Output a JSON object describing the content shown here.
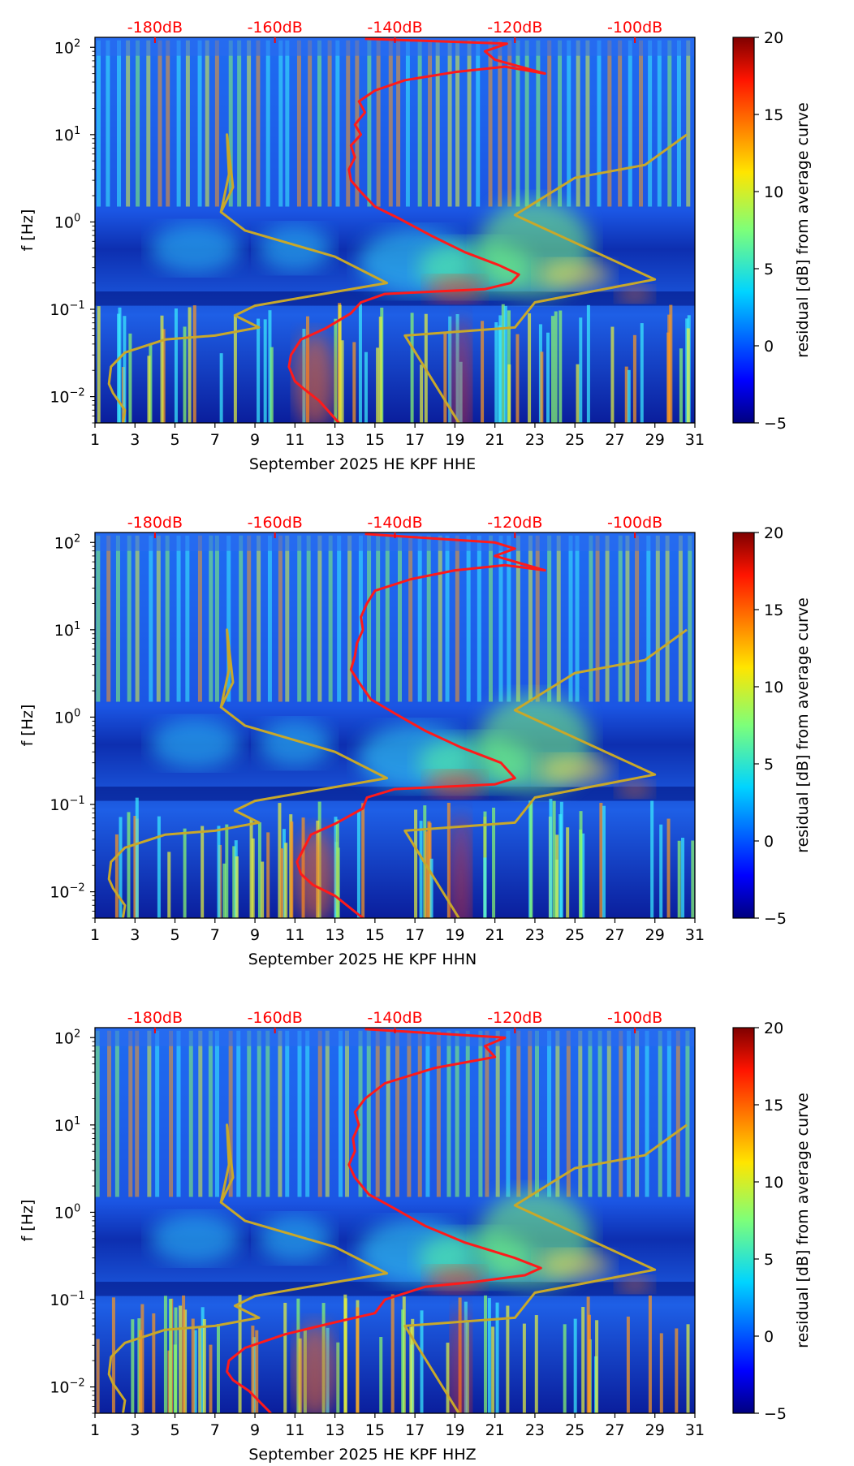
{
  "chart_data": [
    {
      "type": "heatmap",
      "xlabel": "September 2025 HE KPF  HHE",
      "ylabel": "f [Hz]",
      "x_ticks": [
        1,
        3,
        5,
        7,
        9,
        11,
        13,
        15,
        17,
        19,
        21,
        23,
        25,
        27,
        29,
        31
      ],
      "xlim": [
        1,
        31
      ],
      "y_scale": "log",
      "ylim": [
        0.005,
        130
      ],
      "y_ticks": [
        {
          "value": 0.01,
          "base": "10",
          "exp": "−2"
        },
        {
          "value": 0.1,
          "base": "10",
          "exp": "−1"
        },
        {
          "value": 1,
          "base": "10",
          "exp": "0"
        },
        {
          "value": 10,
          "base": "10",
          "exp": "1"
        },
        {
          "value": 100,
          "base": "10",
          "exp": "2"
        }
      ],
      "top_axis": {
        "labels": [
          "-180dB",
          "-160dB",
          "-140dB",
          "-120dB",
          "-100dB"
        ],
        "positions": [
          4,
          10,
          16,
          22,
          28
        ]
      },
      "colorbar": {
        "label": "residual [dB] from average curve",
        "range": [
          -5,
          20
        ],
        "ticks": [
          -5,
          0,
          5,
          10,
          15,
          20
        ]
      },
      "series": [
        {
          "color": "#ff1a1a",
          "points": [
            [
              13.2,
              0.005
            ],
            [
              12.2,
              0.009
            ],
            [
              11.5,
              0.012
            ],
            [
              11.0,
              0.015
            ],
            [
              10.7,
              0.022
            ],
            [
              10.8,
              0.03
            ],
            [
              11.3,
              0.045
            ],
            [
              12.5,
              0.06
            ],
            [
              13.8,
              0.09
            ],
            [
              14.3,
              0.12
            ],
            [
              15.5,
              0.15
            ],
            [
              18.0,
              0.16
            ],
            [
              20.5,
              0.17
            ],
            [
              21.8,
              0.2
            ],
            [
              22.2,
              0.25
            ],
            [
              21.2,
              0.32
            ],
            [
              19.5,
              0.45
            ],
            [
              17.8,
              0.7
            ],
            [
              16.2,
              1.1
            ],
            [
              15.0,
              1.5
            ],
            [
              14.3,
              2.2
            ],
            [
              13.8,
              3.0
            ],
            [
              13.7,
              4.0
            ],
            [
              14.0,
              5.5
            ],
            [
              13.8,
              7.5
            ],
            [
              14.3,
              10
            ],
            [
              14.0,
              13
            ],
            [
              14.5,
              18
            ],
            [
              14.2,
              24
            ],
            [
              15.0,
              32
            ],
            [
              16.5,
              42
            ],
            [
              19.0,
              52
            ],
            [
              21.5,
              60
            ],
            [
              23.5,
              50
            ],
            [
              21.0,
              72
            ],
            [
              20.5,
              90
            ],
            [
              21.6,
              110
            ],
            [
              14.5,
              125
            ]
          ]
        },
        {
          "color": "#c8a82a",
          "points": [
            [
              2.4,
              0.005
            ],
            [
              2.5,
              0.007
            ],
            [
              1.9,
              0.011
            ],
            [
              1.7,
              0.014
            ],
            [
              1.8,
              0.022
            ],
            [
              2.5,
              0.032
            ],
            [
              4.5,
              0.045
            ],
            [
              7.0,
              0.05
            ],
            [
              9.2,
              0.062
            ],
            [
              8.0,
              0.085
            ],
            [
              9.0,
              0.11
            ],
            [
              15.6,
              0.2
            ],
            [
              13.0,
              0.4
            ],
            [
              8.5,
              0.8
            ],
            [
              7.3,
              1.3
            ],
            [
              7.9,
              2.5
            ],
            [
              7.6,
              10
            ],
            [
              7.7,
              3.5
            ],
            [
              7.3,
              1.3
            ]
          ]
        },
        {
          "color": "#c8a82a",
          "points": [
            [
              19.2,
              0.005
            ],
            [
              16.5,
              0.05
            ],
            [
              22.0,
              0.062
            ],
            [
              23.0,
              0.12
            ],
            [
              29.0,
              0.22
            ],
            [
              22.0,
              1.2
            ],
            [
              25.0,
              3.2
            ],
            [
              28.5,
              4.5
            ],
            [
              30.6,
              10
            ]
          ]
        }
      ]
    },
    {
      "type": "heatmap",
      "xlabel": "September 2025 HE KPF  HHN",
      "ylabel": "f [Hz]",
      "x_ticks": [
        1,
        3,
        5,
        7,
        9,
        11,
        13,
        15,
        17,
        19,
        21,
        23,
        25,
        27,
        29,
        31
      ],
      "xlim": [
        1,
        31
      ],
      "y_scale": "log",
      "ylim": [
        0.005,
        130
      ],
      "y_ticks": [
        {
          "value": 0.01,
          "base": "10",
          "exp": "−2"
        },
        {
          "value": 0.1,
          "base": "10",
          "exp": "−1"
        },
        {
          "value": 1,
          "base": "10",
          "exp": "0"
        },
        {
          "value": 10,
          "base": "10",
          "exp": "1"
        },
        {
          "value": 100,
          "base": "10",
          "exp": "2"
        }
      ],
      "top_axis": {
        "labels": [
          "-180dB",
          "-160dB",
          "-140dB",
          "-120dB",
          "-100dB"
        ],
        "positions": [
          4,
          10,
          16,
          22,
          28
        ]
      },
      "colorbar": {
        "label": "residual [dB] from average curve",
        "range": [
          -5,
          20
        ],
        "ticks": [
          -5,
          0,
          5,
          10,
          15,
          20
        ]
      },
      "series": [
        {
          "color": "#ff1a1a",
          "points": [
            [
              14.4,
              0.005
            ],
            [
              13.0,
              0.009
            ],
            [
              11.9,
              0.012
            ],
            [
              11.3,
              0.016
            ],
            [
              11.1,
              0.022
            ],
            [
              11.4,
              0.03
            ],
            [
              11.8,
              0.045
            ],
            [
              13.0,
              0.06
            ],
            [
              14.4,
              0.09
            ],
            [
              14.6,
              0.12
            ],
            [
              16.0,
              0.15
            ],
            [
              18.5,
              0.16
            ],
            [
              21.0,
              0.17
            ],
            [
              22.0,
              0.2
            ],
            [
              21.3,
              0.3
            ],
            [
              19.3,
              0.45
            ],
            [
              17.5,
              0.7
            ],
            [
              16.0,
              1.1
            ],
            [
              14.8,
              1.6
            ],
            [
              14.2,
              2.5
            ],
            [
              13.8,
              3.5
            ],
            [
              14.0,
              5.0
            ],
            [
              14.1,
              7.0
            ],
            [
              14.4,
              10
            ],
            [
              14.3,
              14
            ],
            [
              14.6,
              20
            ],
            [
              15.0,
              28
            ],
            [
              16.8,
              38
            ],
            [
              19.0,
              48
            ],
            [
              21.5,
              55
            ],
            [
              23.5,
              48
            ],
            [
              21.0,
              70
            ],
            [
              22.0,
              85
            ],
            [
              21.0,
              100
            ],
            [
              14.5,
              125
            ]
          ]
        },
        {
          "color": "#c8a82a",
          "points": [
            [
              2.4,
              0.005
            ],
            [
              2.5,
              0.007
            ],
            [
              1.9,
              0.011
            ],
            [
              1.7,
              0.014
            ],
            [
              1.8,
              0.022
            ],
            [
              2.5,
              0.032
            ],
            [
              4.5,
              0.045
            ],
            [
              7.0,
              0.05
            ],
            [
              9.2,
              0.062
            ],
            [
              8.0,
              0.085
            ],
            [
              9.0,
              0.11
            ],
            [
              15.6,
              0.2
            ],
            [
              13.0,
              0.4
            ],
            [
              8.5,
              0.8
            ],
            [
              7.3,
              1.3
            ],
            [
              7.9,
              2.5
            ],
            [
              7.6,
              10
            ],
            [
              7.7,
              3.5
            ],
            [
              7.3,
              1.3
            ]
          ]
        },
        {
          "color": "#c8a82a",
          "points": [
            [
              19.2,
              0.005
            ],
            [
              16.5,
              0.05
            ],
            [
              22.0,
              0.062
            ],
            [
              23.0,
              0.12
            ],
            [
              29.0,
              0.22
            ],
            [
              22.0,
              1.2
            ],
            [
              25.0,
              3.2
            ],
            [
              28.5,
              4.5
            ],
            [
              30.6,
              10
            ]
          ]
        }
      ]
    },
    {
      "type": "heatmap",
      "xlabel": "September 2025 HE KPF  HHZ",
      "ylabel": "f [Hz]",
      "x_ticks": [
        1,
        3,
        5,
        7,
        9,
        11,
        13,
        15,
        17,
        19,
        21,
        23,
        25,
        27,
        29,
        31
      ],
      "xlim": [
        1,
        31
      ],
      "y_scale": "log",
      "ylim": [
        0.005,
        130
      ],
      "y_ticks": [
        {
          "value": 0.01,
          "base": "10",
          "exp": "−2"
        },
        {
          "value": 0.1,
          "base": "10",
          "exp": "−1"
        },
        {
          "value": 1,
          "base": "10",
          "exp": "0"
        },
        {
          "value": 10,
          "base": "10",
          "exp": "1"
        },
        {
          "value": 100,
          "base": "10",
          "exp": "2"
        }
      ],
      "top_axis": {
        "labels": [
          "-180dB",
          "-160dB",
          "-140dB",
          "-120dB",
          "-100dB"
        ],
        "positions": [
          4,
          10,
          16,
          22,
          28
        ]
      },
      "colorbar": {
        "label": "residual [dB] from average curve",
        "range": [
          -5,
          20
        ],
        "ticks": [
          -5,
          0,
          5,
          10,
          15,
          20
        ]
      },
      "series": [
        {
          "color": "#ff1a1a",
          "points": [
            [
              9.8,
              0.005
            ],
            [
              8.7,
              0.009
            ],
            [
              7.9,
              0.012
            ],
            [
              7.6,
              0.015
            ],
            [
              7.7,
              0.02
            ],
            [
              8.5,
              0.028
            ],
            [
              10.5,
              0.04
            ],
            [
              13.0,
              0.055
            ],
            [
              15.0,
              0.07
            ],
            [
              15.5,
              0.1
            ],
            [
              17.5,
              0.14
            ],
            [
              20.0,
              0.16
            ],
            [
              22.5,
              0.19
            ],
            [
              23.3,
              0.23
            ],
            [
              22.0,
              0.3
            ],
            [
              19.5,
              0.45
            ],
            [
              17.5,
              0.7
            ],
            [
              16.0,
              1.1
            ],
            [
              14.7,
              1.6
            ],
            [
              14.0,
              2.5
            ],
            [
              13.7,
              3.5
            ],
            [
              14.0,
              5
            ],
            [
              13.9,
              7
            ],
            [
              14.2,
              10
            ],
            [
              14.0,
              14
            ],
            [
              14.5,
              20
            ],
            [
              15.5,
              30
            ],
            [
              18.0,
              45
            ],
            [
              21.0,
              60
            ],
            [
              20.5,
              80
            ],
            [
              21.5,
              100
            ],
            [
              14.5,
              125
            ]
          ]
        },
        {
          "color": "#c8a82a",
          "points": [
            [
              2.4,
              0.005
            ],
            [
              2.5,
              0.007
            ],
            [
              1.9,
              0.011
            ],
            [
              1.7,
              0.014
            ],
            [
              1.8,
              0.022
            ],
            [
              2.5,
              0.032
            ],
            [
              4.5,
              0.045
            ],
            [
              7.0,
              0.05
            ],
            [
              9.2,
              0.062
            ],
            [
              8.0,
              0.085
            ],
            [
              9.0,
              0.11
            ],
            [
              15.6,
              0.2
            ],
            [
              13.0,
              0.4
            ],
            [
              8.5,
              0.8
            ],
            [
              7.3,
              1.3
            ],
            [
              7.9,
              2.5
            ],
            [
              7.6,
              10
            ],
            [
              7.7,
              3.5
            ],
            [
              7.3,
              1.3
            ]
          ]
        },
        {
          "color": "#c8a82a",
          "points": [
            [
              19.2,
              0.005
            ],
            [
              16.5,
              0.05
            ],
            [
              22.0,
              0.062
            ],
            [
              23.0,
              0.12
            ],
            [
              29.0,
              0.22
            ],
            [
              22.0,
              1.2
            ],
            [
              25.0,
              3.2
            ],
            [
              28.5,
              4.5
            ],
            [
              30.6,
              10
            ]
          ]
        }
      ]
    }
  ]
}
